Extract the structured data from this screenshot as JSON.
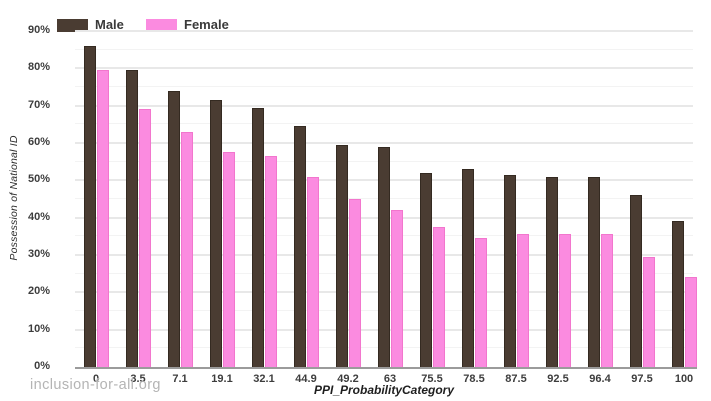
{
  "chart_data": {
    "type": "bar",
    "title": "",
    "xlabel": "PPI_ProbabilityCategory",
    "ylabel": "Possession of National ID",
    "categories": [
      "0",
      "3.5",
      "7.1",
      "19.1",
      "32.1",
      "44.9",
      "49.2",
      "63",
      "75.5",
      "78.5",
      "87.5",
      "92.5",
      "96.4",
      "97.5",
      "100"
    ],
    "series": [
      {
        "name": "Male",
        "color": "#4a3c32",
        "border_color": "#342a21",
        "values": [
          86,
          79.5,
          74,
          71.5,
          69.5,
          64.5,
          59.5,
          59,
          52,
          53,
          51.5,
          51,
          51,
          46,
          39
        ]
      },
      {
        "name": "Female",
        "color": "#fb8be0",
        "border_color": "#f276cd",
        "values": [
          79.5,
          69,
          63,
          57.5,
          56.5,
          51,
          45,
          42,
          37.5,
          34.5,
          35.5,
          35.5,
          35.5,
          29.5,
          24
        ]
      }
    ],
    "ylim": [
      0,
      90
    ],
    "y_tick_labels": [
      "0%",
      "10%",
      "20%",
      "30%",
      "40%",
      "50%",
      "60%",
      "70%",
      "80%",
      "90%"
    ],
    "grid": {
      "orientation": "horizontal",
      "major_every_pct": 10,
      "minor_every_pct": 5,
      "major_color": "#e8e8e8",
      "minor_color": "#f3f3f3"
    },
    "axis_line_color": "#9b9b9b",
    "legend_position": "top-left"
  },
  "footer": {
    "text": "inclusion-for-all.org"
  }
}
